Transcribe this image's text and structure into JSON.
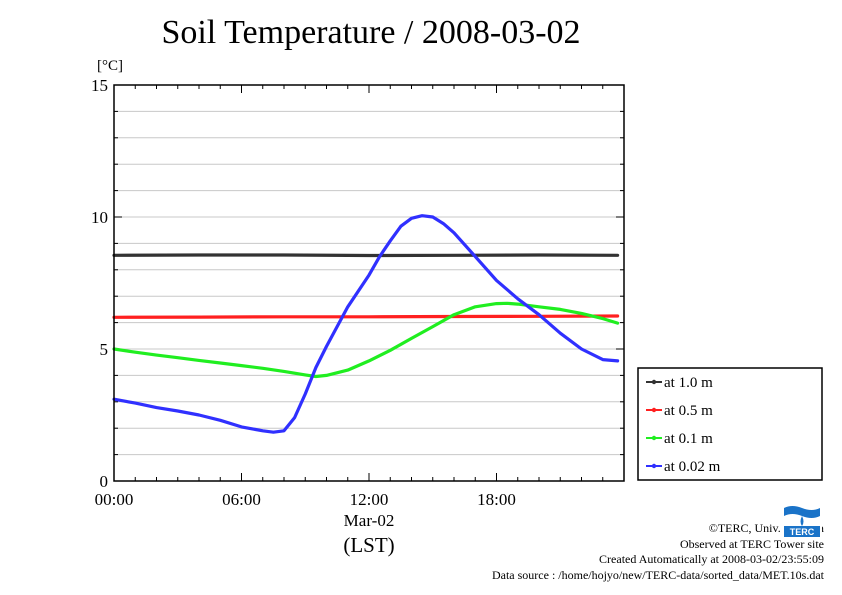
{
  "chart_data": {
    "type": "line",
    "title": "Soil Temperature / 2008-03-02",
    "ylabel": "[°C]",
    "date_label": "Mar-02",
    "xlabel": "(LST)",
    "ylim": [
      0,
      15
    ],
    "xlim": [
      0,
      24
    ],
    "yticks": [
      0,
      5,
      10,
      15
    ],
    "ytick_labels": [
      "0",
      "5",
      "10",
      "15"
    ],
    "xticks": [
      0,
      6,
      12,
      18
    ],
    "xtick_labels": [
      "00:00",
      "06:00",
      "12:00",
      "18:00"
    ],
    "grid": true,
    "legend_position": "right-lower",
    "series": [
      {
        "name": "at 1.0 m",
        "color": "#333333",
        "x": [
          0,
          4,
          8,
          12,
          16,
          20,
          23.7
        ],
        "y": [
          8.55,
          8.56,
          8.56,
          8.54,
          8.55,
          8.56,
          8.55
        ]
      },
      {
        "name": "at 0.5 m",
        "color": "#ff2020",
        "x": [
          0,
          4,
          8,
          12,
          16,
          20,
          23.7
        ],
        "y": [
          6.2,
          6.21,
          6.22,
          6.22,
          6.23,
          6.24,
          6.25
        ]
      },
      {
        "name": "at 0.1 m",
        "color": "#20ee20",
        "x": [
          0,
          1,
          2,
          3,
          4,
          5,
          6,
          7,
          8,
          9,
          9.5,
          10,
          11,
          12,
          13,
          14,
          15,
          16,
          17,
          18,
          18.5,
          19,
          20,
          21,
          22,
          23,
          23.7
        ],
        "y": [
          5.0,
          4.88,
          4.77,
          4.67,
          4.57,
          4.47,
          4.37,
          4.27,
          4.15,
          4.02,
          3.96,
          4.0,
          4.2,
          4.55,
          4.95,
          5.4,
          5.85,
          6.3,
          6.6,
          6.72,
          6.73,
          6.7,
          6.6,
          6.5,
          6.35,
          6.15,
          5.98
        ]
      },
      {
        "name": "at 0.02 m",
        "color": "#3030ff",
        "x": [
          0,
          1,
          2,
          3,
          4,
          5,
          6,
          7,
          7.5,
          8,
          8.5,
          9,
          9.5,
          10,
          11,
          12,
          12.5,
          13,
          13.5,
          14,
          14.5,
          15,
          15.5,
          16,
          17,
          18,
          19,
          20,
          21,
          22,
          23,
          23.7
        ],
        "y": [
          3.1,
          2.95,
          2.78,
          2.65,
          2.5,
          2.3,
          2.05,
          1.9,
          1.85,
          1.9,
          2.4,
          3.3,
          4.3,
          5.1,
          6.6,
          7.8,
          8.5,
          9.1,
          9.65,
          9.95,
          10.05,
          10.0,
          9.75,
          9.4,
          8.5,
          7.6,
          6.9,
          6.3,
          5.6,
          5.0,
          4.6,
          4.55
        ]
      }
    ]
  },
  "credits": {
    "copyright": "©TERC, Univ. Tsukuba",
    "observed": "Observed at TERC Tower site",
    "created": "Created Automatically at 2008-03-02/23:55:09",
    "source": "Data source : /home/hojyo/new/TERC-data/sorted_data/MET.10s.dat"
  },
  "logo": {
    "text": "TERC",
    "color": "#1a73c8",
    "description_icon": "terc-logo-icon"
  }
}
